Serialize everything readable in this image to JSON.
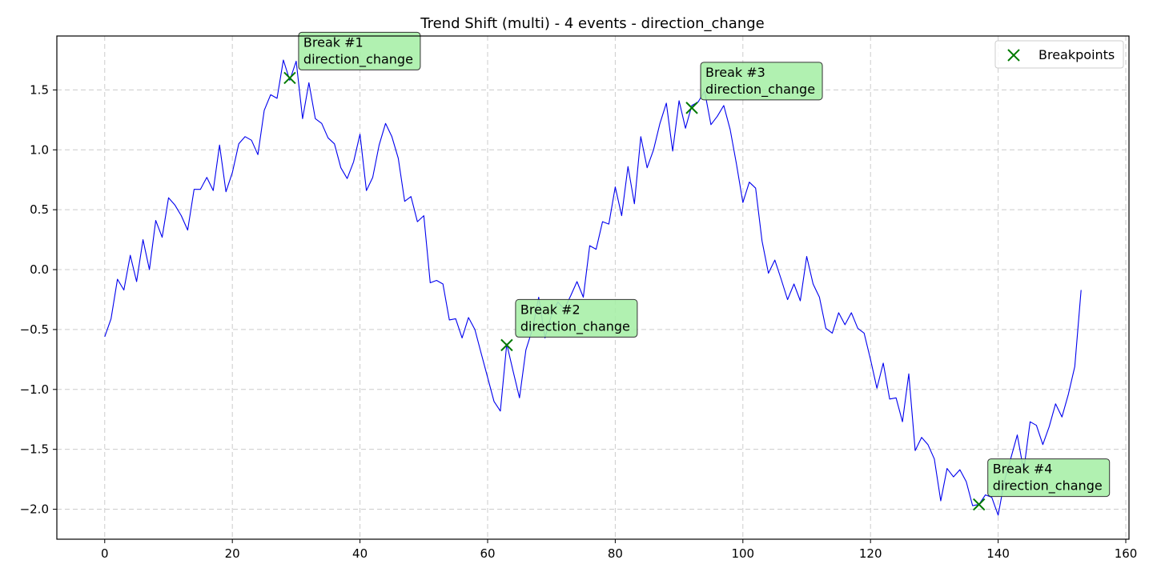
{
  "chart_data": {
    "type": "line",
    "title": "Trend Shift (multi) - 4 events - direction_change",
    "xlabel": "",
    "ylabel": "",
    "xlim": [
      -7.5,
      160.5
    ],
    "ylim": [
      -2.25,
      1.95
    ],
    "xticks": [
      0,
      20,
      40,
      60,
      80,
      100,
      120,
      140,
      160
    ],
    "yticks": [
      -2.0,
      -1.5,
      -1.0,
      -0.5,
      0.0,
      0.5,
      1.0,
      1.5
    ],
    "xtick_labels": [
      "0",
      "20",
      "40",
      "60",
      "80",
      "100",
      "120",
      "140",
      "160"
    ],
    "ytick_labels": [
      "−2.0",
      "−1.5",
      "−1.0",
      "−0.5",
      "0.0",
      "0.5",
      "1.0",
      "1.5"
    ],
    "grid": true,
    "legend_position": "top-right",
    "series": [
      {
        "color": "#0000ee",
        "x": [
          0,
          1,
          2,
          3,
          4,
          5,
          6,
          7,
          8,
          9,
          10,
          11,
          12,
          13,
          14,
          15,
          16,
          17,
          18,
          19,
          20,
          21,
          22,
          23,
          24,
          25,
          26,
          27,
          28,
          29,
          30,
          31,
          32,
          33,
          34,
          35,
          36,
          37,
          38,
          39,
          40,
          41,
          42,
          43,
          44,
          45,
          46,
          47,
          48,
          49,
          50,
          51,
          52,
          53,
          54,
          55,
          56,
          57,
          58,
          59,
          60,
          61,
          62,
          63,
          64,
          65,
          66,
          67,
          68,
          69,
          70,
          71,
          72,
          73,
          74,
          75,
          76,
          77,
          78,
          79,
          80,
          81,
          82,
          83,
          84,
          85,
          86,
          87,
          88,
          89,
          90,
          91,
          92,
          93,
          94,
          95,
          96,
          97,
          98,
          99,
          100,
          101,
          102,
          103,
          104,
          105,
          106,
          107,
          108,
          109,
          110,
          111,
          112,
          113,
          114,
          115,
          116,
          117,
          118,
          119,
          120,
          121,
          122,
          123,
          124,
          125,
          126,
          127,
          128,
          129,
          130,
          131,
          132,
          133,
          134,
          135,
          136,
          137,
          138,
          139,
          140,
          141,
          142,
          143,
          144,
          145,
          146,
          147,
          148,
          149,
          150,
          151,
          152,
          153
        ],
        "y": [
          -0.56,
          -0.41,
          -0.08,
          -0.17,
          0.12,
          -0.1,
          0.25,
          0.0,
          0.41,
          0.27,
          0.6,
          0.54,
          0.45,
          0.33,
          0.67,
          0.67,
          0.77,
          0.66,
          1.04,
          0.65,
          0.81,
          1.05,
          1.11,
          1.08,
          0.96,
          1.33,
          1.46,
          1.43,
          1.75,
          1.58,
          1.74,
          1.26,
          1.56,
          1.26,
          1.22,
          1.1,
          1.05,
          0.85,
          0.76,
          0.9,
          1.13,
          0.66,
          0.77,
          1.04,
          1.22,
          1.11,
          0.93,
          0.57,
          0.61,
          0.4,
          0.45,
          -0.11,
          -0.09,
          -0.12,
          -0.42,
          -0.41,
          -0.57,
          -0.4,
          -0.5,
          -0.7,
          -0.9,
          -1.1,
          -1.18,
          -0.62,
          -0.85,
          -1.07,
          -0.67,
          -0.5,
          -0.23,
          -0.57,
          -0.38,
          -0.27,
          -0.33,
          -0.22,
          -0.1,
          -0.23,
          0.2,
          0.17,
          0.4,
          0.38,
          0.69,
          0.45,
          0.86,
          0.55,
          1.11,
          0.85,
          1.0,
          1.22,
          1.39,
          0.99,
          1.41,
          1.18,
          1.37,
          1.4,
          1.49,
          1.21,
          1.28,
          1.37,
          1.17,
          0.88,
          0.56,
          0.73,
          0.68,
          0.24,
          -0.03,
          0.08,
          -0.08,
          -0.25,
          -0.12,
          -0.26,
          0.11,
          -0.12,
          -0.23,
          -0.49,
          -0.53,
          -0.36,
          -0.46,
          -0.36,
          -0.49,
          -0.53,
          -0.75,
          -0.99,
          -0.78,
          -1.08,
          -1.07,
          -1.27,
          -0.87,
          -1.51,
          -1.4,
          -1.46,
          -1.58,
          -1.93,
          -1.66,
          -1.73,
          -1.67,
          -1.77,
          -1.97,
          -1.96,
          -1.88,
          -1.9,
          -2.05,
          -1.76,
          -1.57,
          -1.38,
          -1.68,
          -1.27,
          -1.3,
          -1.46,
          -1.31,
          -1.12,
          -1.23,
          -1.04,
          -0.81,
          -0.17
        ]
      }
    ],
    "breakpoints": {
      "legend_label": "Breakpoints",
      "marker_color": "#007a00",
      "points": [
        {
          "x": 29,
          "y": 1.6,
          "label_line1": "Break #1",
          "label_line2": "direction_change"
        },
        {
          "x": 63,
          "y": -0.63,
          "label_line1": "Break #2",
          "label_line2": "direction_change"
        },
        {
          "x": 92,
          "y": 1.35,
          "label_line1": "Break #3",
          "label_line2": "direction_change"
        },
        {
          "x": 137,
          "y": -1.96,
          "label_line1": "Break #4",
          "label_line2": "direction_change"
        }
      ]
    }
  }
}
